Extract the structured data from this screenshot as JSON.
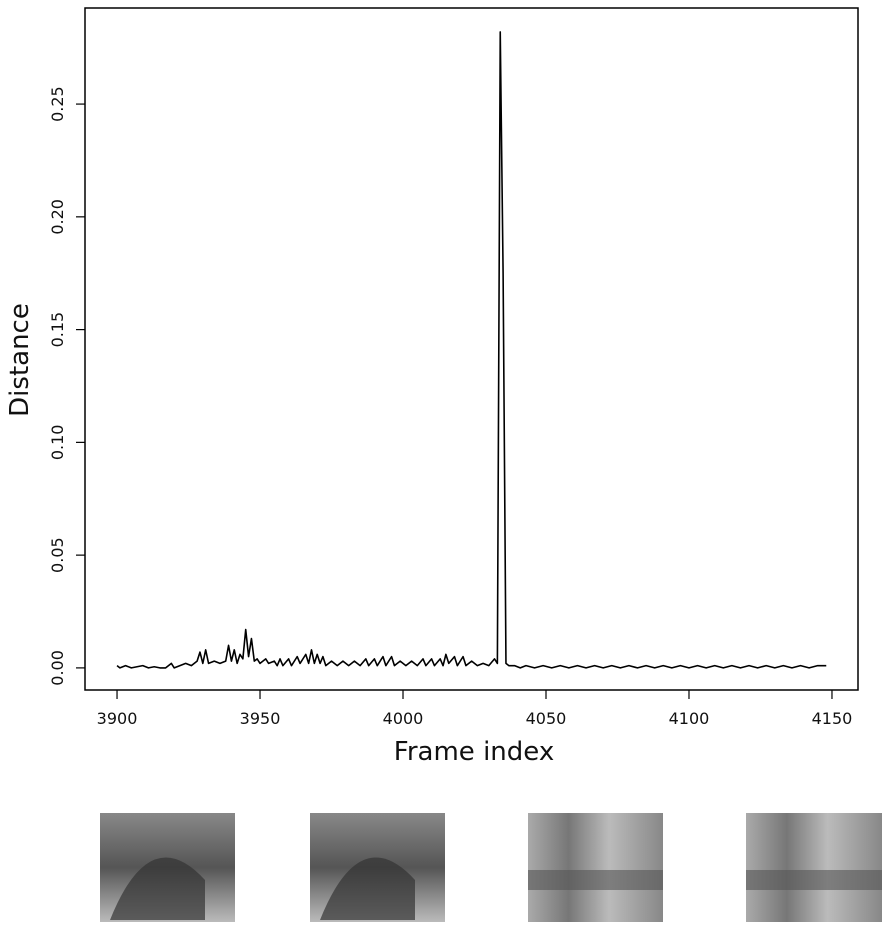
{
  "chart_data": {
    "type": "line",
    "xlabel": "Frame index",
    "ylabel": "Distance",
    "xlim": [
      3888.8,
      4159.1
    ],
    "ylim": [
      -0.0098,
      0.2926
    ],
    "xticks": [
      3900,
      3950,
      4000,
      4050,
      4100,
      4150
    ],
    "yticks": [
      {
        "value": 0,
        "label": "0.00"
      },
      0.05,
      {
        "value": 0.1,
        "label": "0.10"
      },
      0.15,
      {
        "value": 0.2,
        "label": "0.20"
      },
      0.25
    ],
    "series": [
      {
        "color": "#000000",
        "x": [
          3900,
          3901,
          3903,
          3905,
          3907,
          3909,
          3911,
          3913,
          3915,
          3917,
          3919,
          3920,
          3922,
          3924,
          3926,
          3928,
          3929,
          3930,
          3931,
          3932,
          3934,
          3936,
          3938,
          3939,
          3940,
          3941,
          3942,
          3943,
          3944,
          3945,
          3946,
          3947,
          3948,
          3949,
          3950,
          3952,
          3953,
          3955,
          3956,
          3957,
          3958,
          3960,
          3961,
          3963,
          3964,
          3966,
          3967,
          3968,
          3969,
          3970,
          3971,
          3972,
          3973,
          3975,
          3977,
          3979,
          3981,
          3983,
          3985,
          3987,
          3988,
          3990,
          3991,
          3993,
          3994,
          3996,
          3997,
          3999,
          4001,
          4003,
          4005,
          4007,
          4008,
          4010,
          4011,
          4013,
          4014,
          4015,
          4016,
          4018,
          4019,
          4021,
          4022,
          4024,
          4026,
          4028,
          4030,
          4032,
          4033,
          4034,
          4035,
          4036,
          4037,
          4039,
          4041,
          4043,
          4046,
          4049,
          4052,
          4055,
          4058,
          4061,
          4064,
          4067,
          4070,
          4073,
          4076,
          4079,
          4082,
          4085,
          4088,
          4091,
          4094,
          4097,
          4100,
          4103,
          4106,
          4109,
          4112,
          4115,
          4118,
          4121,
          4124,
          4127,
          4130,
          4133,
          4136,
          4139,
          4142,
          4145,
          4148
        ],
        "values": [
          0.001,
          0,
          0.001,
          0,
          0.0005,
          0.001,
          0,
          0.0005,
          0,
          0,
          0.002,
          0,
          0.001,
          0.002,
          0.001,
          0.003,
          0.007,
          0.002,
          0.008,
          0.002,
          0.003,
          0.002,
          0.003,
          0.01,
          0.003,
          0.008,
          0.002,
          0.006,
          0.004,
          0.017,
          0.005,
          0.013,
          0.003,
          0.004,
          0.002,
          0.004,
          0.002,
          0.003,
          0.001,
          0.004,
          0.001,
          0.004,
          0.001,
          0.005,
          0.002,
          0.006,
          0.002,
          0.008,
          0.002,
          0.006,
          0.002,
          0.005,
          0.001,
          0.003,
          0.001,
          0.003,
          0.001,
          0.003,
          0.001,
          0.004,
          0.001,
          0.004,
          0.001,
          0.005,
          0.001,
          0.005,
          0.001,
          0.003,
          0.001,
          0.003,
          0.001,
          0.004,
          0.001,
          0.004,
          0.001,
          0.004,
          0.001,
          0.006,
          0.002,
          0.005,
          0.001,
          0.005,
          0.001,
          0.003,
          0.001,
          0.002,
          0.001,
          0.004,
          0.002,
          0.282,
          0.175,
          0.002,
          0.001,
          0.001,
          0,
          0.001,
          0,
          0.001,
          0,
          0.001,
          0,
          0.001,
          0,
          0.001,
          0,
          0.001,
          0,
          0.001,
          0,
          0.001,
          0,
          0.001,
          0,
          0.001,
          0,
          0.001,
          0,
          0.001,
          0,
          0.001,
          0,
          0.001,
          0,
          0.001,
          0,
          0.001,
          0,
          0.001,
          0,
          0.001,
          0.001
        ]
      }
    ]
  }
}
